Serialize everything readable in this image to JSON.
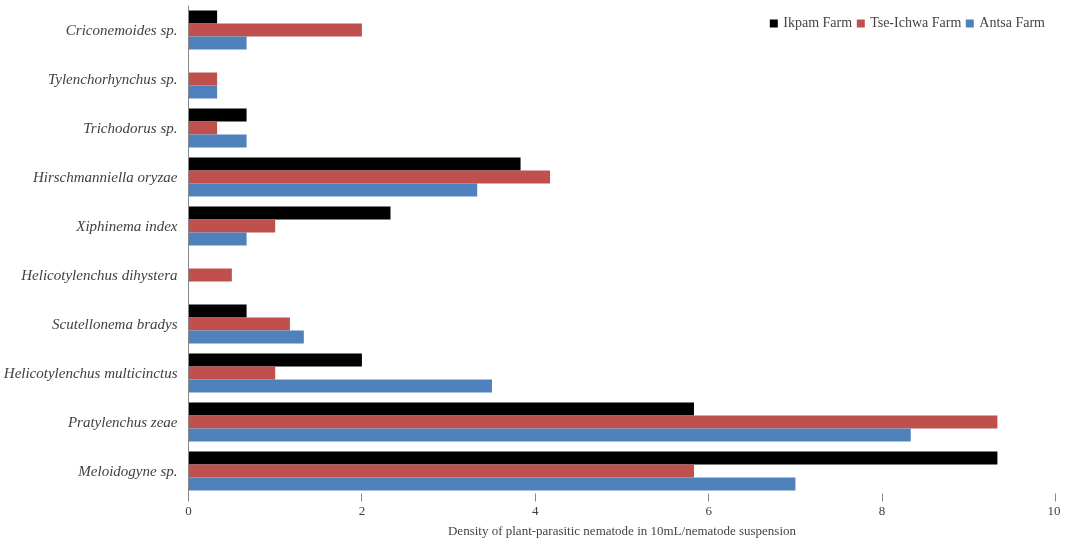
{
  "chart_data": {
    "type": "bar",
    "orientation": "horizontal",
    "xlabel": "Density of plant-parasitic nematode in 10mL/nematode suspension",
    "categories": [
      "Criconemoides sp.",
      "Tylenchorhynchus sp.",
      "Trichodorus sp.",
      "Hirschmanniella oryzae",
      "Xiphinema index",
      "Helicotylenchus dihystera",
      "Scutellonema bradys",
      "Helicotylenchus multicinctus",
      "Pratylenchus zeae",
      "Meloidogyne sp."
    ],
    "series": [
      {
        "name": "Ikpam Farm",
        "color": "#000000",
        "values": [
          0.33,
          0,
          0.67,
          3.83,
          2.33,
          0,
          0.67,
          2.0,
          5.83,
          9.33
        ]
      },
      {
        "name": "Tse-Ichwa Farm",
        "color": "#c0504d",
        "values": [
          2.0,
          0.33,
          0.33,
          4.17,
          1.0,
          0.5,
          1.17,
          1.0,
          9.33,
          5.83
        ]
      },
      {
        "name": "Antsa Farm",
        "color": "#4f81bd",
        "values": [
          0.67,
          0.33,
          0.67,
          3.33,
          0.67,
          0,
          1.33,
          3.5,
          8.33,
          7.0
        ]
      }
    ],
    "xlim": [
      0,
      10
    ],
    "xticks": [
      0,
      2,
      4,
      6,
      8,
      10
    ],
    "grid": false,
    "legend": "top right"
  }
}
